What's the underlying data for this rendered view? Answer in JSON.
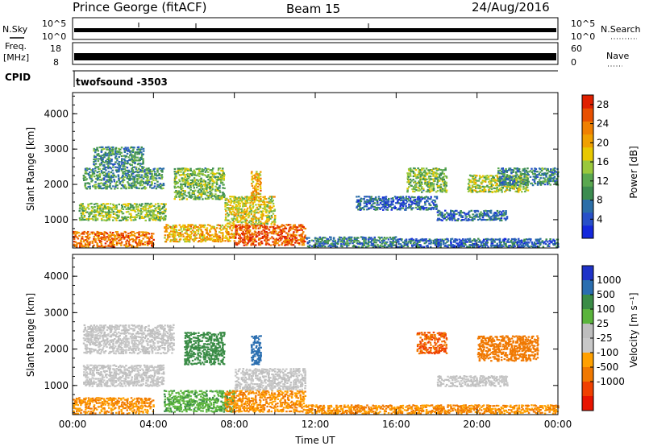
{
  "header": {
    "site": "Prince George (fitACF)",
    "beam": "Beam 15",
    "date": "24/Aug/2016"
  },
  "noise_panel": {
    "left_label": "N.Sky",
    "right_label": "N.Search",
    "ticks_left": [
      "10^5",
      "10^0"
    ],
    "ticks_right": [
      "10^5",
      "10^0"
    ]
  },
  "freq_panel": {
    "left_label_1": "Freq.",
    "left_label_2": "[MHz]",
    "ticks_left": [
      "18",
      "8"
    ],
    "right_label": "Nave",
    "ticks_right": [
      "60",
      "0"
    ]
  },
  "cpid_panel": {
    "label": "CPID",
    "value": "twofsound  -3503"
  },
  "colors": {
    "power_scale": [
      "#1428dc",
      "#2850c8",
      "#2b6ea8",
      "#3c8c50",
      "#5aa850",
      "#9ac83c",
      "#e8c800",
      "#f0a000",
      "#f08000",
      "#e85000",
      "#e02000"
    ],
    "velocity_scale": [
      "#1e32c8",
      "#2a6eb0",
      "#3a8c46",
      "#5ab43c",
      "#bebebe",
      "#c8c8c8",
      "#ffa000",
      "#f07800",
      "#f04000",
      "#e81400"
    ]
  },
  "chart_data": [
    {
      "type": "heatmap",
      "name": "power",
      "ylabel": "Slant Range [km]",
      "y_ticks": [
        1000,
        2000,
        3000,
        4000
      ],
      "ylim": [
        200,
        4600
      ],
      "x_ticks": [
        "00:00",
        "04:00",
        "08:00",
        "12:00",
        "16:00",
        "20:00",
        "00:00"
      ],
      "xlim_hours": [
        0,
        24
      ],
      "colorbar": {
        "label": "Power [dB]",
        "ticks": [
          "28",
          "24",
          "20",
          "16",
          "12",
          "8",
          "4"
        ],
        "range": [
          0,
          30
        ]
      },
      "regions": [
        {
          "t0": 0.0,
          "t1": 4.0,
          "r0": 250,
          "r1": 700,
          "value": 24
        },
        {
          "t0": 0.3,
          "t1": 4.6,
          "r0": 1000,
          "r1": 1500,
          "value": 14
        },
        {
          "t0": 0.5,
          "t1": 4.5,
          "r0": 1900,
          "r1": 2500,
          "value": 10
        },
        {
          "t0": 1.0,
          "t1": 3.5,
          "r0": 2500,
          "r1": 3100,
          "value": 9
        },
        {
          "t0": 4.5,
          "t1": 8.0,
          "r0": 400,
          "r1": 900,
          "value": 20
        },
        {
          "t0": 5.0,
          "t1": 7.5,
          "r0": 1600,
          "r1": 2500,
          "value": 13
        },
        {
          "t0": 8.0,
          "t1": 11.5,
          "r0": 300,
          "r1": 900,
          "value": 26
        },
        {
          "t0": 7.5,
          "t1": 10.0,
          "r0": 900,
          "r1": 1700,
          "value": 17
        },
        {
          "t0": 8.8,
          "t1": 9.3,
          "r0": 1600,
          "r1": 2400,
          "value": 20
        },
        {
          "t0": 11.5,
          "t1": 16.0,
          "r0": 250,
          "r1": 550,
          "value": 8
        },
        {
          "t0": 16.0,
          "t1": 24.0,
          "r0": 250,
          "r1": 500,
          "value": 6
        },
        {
          "t0": 14.0,
          "t1": 18.0,
          "r0": 1300,
          "r1": 1700,
          "value": 6
        },
        {
          "t0": 16.5,
          "t1": 18.5,
          "r0": 1800,
          "r1": 2500,
          "value": 13
        },
        {
          "t0": 19.5,
          "t1": 22.5,
          "r0": 1800,
          "r1": 2300,
          "value": 15
        },
        {
          "t0": 21.0,
          "t1": 24.0,
          "r0": 2000,
          "r1": 2500,
          "value": 9
        },
        {
          "t0": 18.0,
          "t1": 21.5,
          "r0": 1000,
          "r1": 1300,
          "value": 7
        }
      ]
    },
    {
      "type": "heatmap",
      "name": "velocity",
      "ylabel": "Slant Range [km]",
      "y_ticks": [
        1000,
        2000,
        3000,
        4000
      ],
      "ylim": [
        200,
        4600
      ],
      "x_ticks": [
        "00:00",
        "04:00",
        "08:00",
        "12:00",
        "16:00",
        "20:00",
        "00:00"
      ],
      "xlabel": "Time UT",
      "xlim_hours": [
        0,
        24
      ],
      "colorbar": {
        "label": "Velocity [m s⁻¹]",
        "ticks": [
          "1000",
          "500",
          "100",
          "25",
          "-25",
          "-100",
          "-500",
          "-1000"
        ]
      },
      "regions": [
        {
          "t0": 0.0,
          "t1": 4.0,
          "r0": 250,
          "r1": 700,
          "value": -100
        },
        {
          "t0": 0.5,
          "t1": 4.5,
          "r0": 1000,
          "r1": 1600,
          "value": 0
        },
        {
          "t0": 0.5,
          "t1": 5.0,
          "r0": 1900,
          "r1": 2700,
          "value": 0
        },
        {
          "t0": 4.5,
          "t1": 8.0,
          "r0": 300,
          "r1": 900,
          "value": 50
        },
        {
          "t0": 5.5,
          "t1": 7.5,
          "r0": 1600,
          "r1": 2500,
          "value": 200
        },
        {
          "t0": 7.5,
          "t1": 11.5,
          "r0": 300,
          "r1": 900,
          "value": -100
        },
        {
          "t0": 8.0,
          "t1": 11.5,
          "r0": 900,
          "r1": 1500,
          "value": 0
        },
        {
          "t0": 8.8,
          "t1": 9.3,
          "r0": 1600,
          "r1": 2400,
          "value": 500
        },
        {
          "t0": 11.5,
          "t1": 24.0,
          "r0": 250,
          "r1": 500,
          "value": -100
        },
        {
          "t0": 17.0,
          "t1": 18.5,
          "r0": 1900,
          "r1": 2500,
          "value": -300
        },
        {
          "t0": 20.0,
          "t1": 23.0,
          "r0": 1700,
          "r1": 2400,
          "value": -200
        },
        {
          "t0": 18.0,
          "t1": 21.5,
          "r0": 1000,
          "r1": 1300,
          "value": 0
        }
      ]
    }
  ]
}
